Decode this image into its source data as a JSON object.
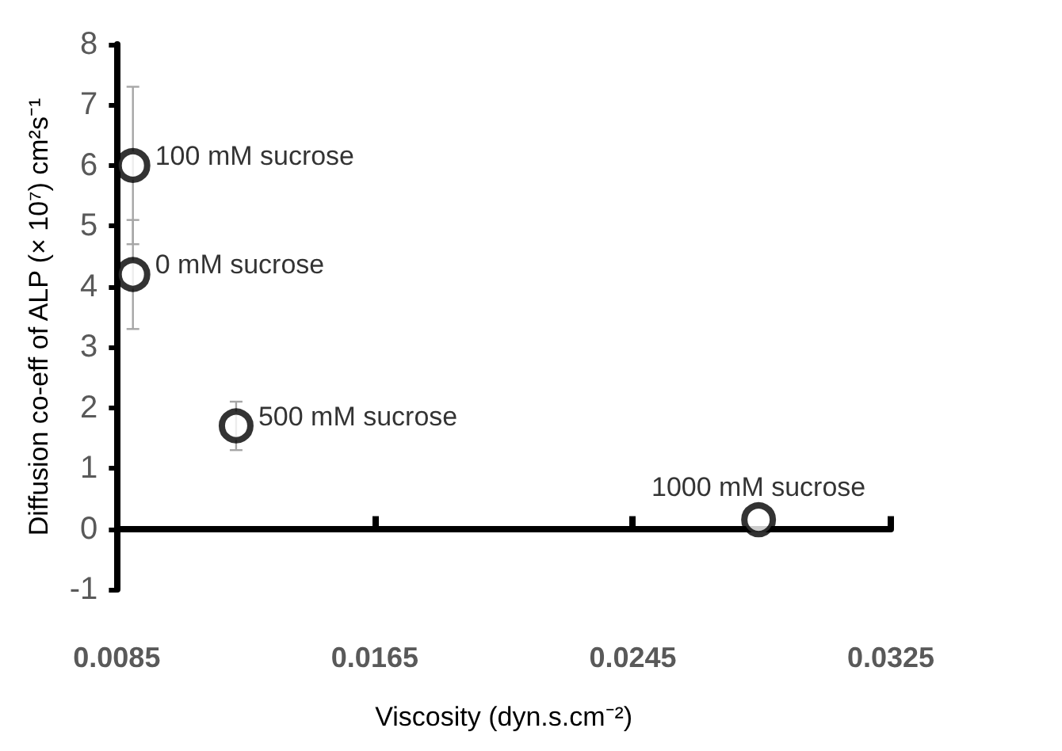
{
  "chart_data": {
    "type": "scatter",
    "xlabel": "Viscosity (dyn.s.cm⁻²)",
    "ylabel": "Diffusion co-eff of ALP (× 10⁷) cm²s⁻¹",
    "x": [
      0.009,
      0.009,
      0.0122,
      0.0284
    ],
    "series": [
      {
        "color": "#000000",
        "values": [
          4.2,
          6.0,
          1.7,
          0.15
        ],
        "errors": [
          [
            3.3,
            5.1
          ],
          [
            4.7,
            7.3
          ],
          [
            1.3,
            2.1
          ],
          null
        ]
      }
    ],
    "xlim": [
      0.0085,
      0.0325
    ],
    "xticks": [
      0.0085,
      0.0165,
      0.0245,
      0.0325
    ],
    "ylim": [
      -1,
      8
    ],
    "yticks": [
      -1,
      0,
      1,
      2,
      3,
      4,
      5,
      6,
      7,
      8
    ],
    "marker": "circle",
    "annotations": [
      {
        "text": "0 mM sucrose",
        "x": 0.009,
        "y": 4.2
      },
      {
        "text": "100 mM sucrose",
        "x": 0.009,
        "y": 6.0
      },
      {
        "text": "500 mM sucrose",
        "x": 0.0122,
        "y": 1.7
      },
      {
        "text": "1000 mM sucrose",
        "x": 0.0284,
        "y": 0.15
      }
    ]
  }
}
